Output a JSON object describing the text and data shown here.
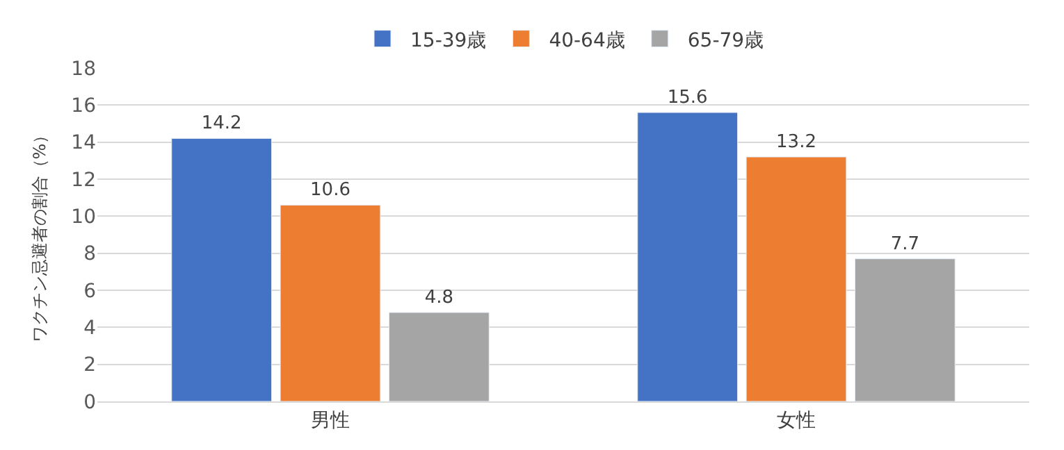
{
  "chart_data": {
    "type": "bar",
    "ylabel": "ワクチン忌避者の割合（%）",
    "categories": [
      "男性",
      "女性"
    ],
    "series": [
      {
        "name": "15-39歳",
        "color": "#4472c4",
        "values": [
          14.2,
          15.6
        ]
      },
      {
        "name": "40-64歳",
        "color": "#ed7d31",
        "values": [
          10.6,
          13.2
        ]
      },
      {
        "name": "65-79歳",
        "color": "#a5a5a5",
        "values": [
          4.8,
          7.7
        ]
      }
    ],
    "ylim": [
      0,
      18
    ],
    "yticks": [
      0,
      2,
      4,
      6,
      8,
      10,
      12,
      14,
      16,
      18
    ],
    "grid": "y",
    "legend": "top",
    "data_labels": true
  }
}
